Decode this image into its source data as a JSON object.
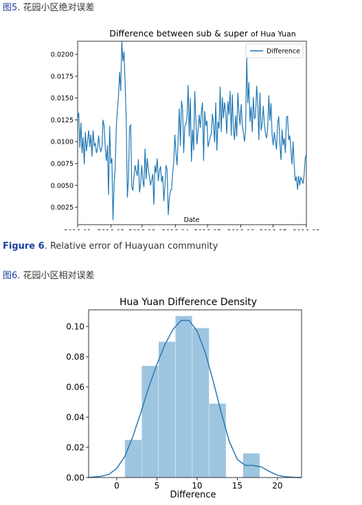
{
  "captions": {
    "fig5_cn": {
      "prefix": "图",
      "num": "5",
      "text": ". 花园小区绝对误差"
    },
    "fig6_en": {
      "label": "Figure 6",
      "text": ". Relative error of Huayuan community"
    },
    "fig6_cn": {
      "prefix": "图",
      "num": "6",
      "text": ". 花园小区相对误差"
    }
  },
  "chart_data": [
    {
      "type": "line",
      "title": "Difference between sub & super",
      "title_suffix": "of Hua Yuan",
      "xlabel": "Date",
      "ylabel": "",
      "x_ticks": [
        "2016-01",
        "2016-02",
        "2016-03",
        "2016-04",
        "2016-05",
        "2016-06",
        "2016-07",
        "2016-08"
      ],
      "y_ticks": [
        "0.0025",
        "0.0050",
        "0.0075",
        "0.0100",
        "0.0125",
        "0.0150",
        "0.0175",
        "0.0200"
      ],
      "ylim": [
        0.0005,
        0.0215
      ],
      "xlim": [
        "2016-01-01",
        "2016-08-01"
      ],
      "legend": {
        "position": "top-right",
        "entries": [
          "Difference"
        ]
      },
      "color": "#1f77b4",
      "series": [
        {
          "name": "Difference",
          "values": [
            0.0126,
            0.0133,
            0.0093,
            0.0122,
            0.0087,
            0.0105,
            0.0074,
            0.0111,
            0.0089,
            0.0101,
            0.0113,
            0.0094,
            0.0108,
            0.0083,
            0.0113,
            0.0095,
            0.0098,
            0.0087,
            0.0092,
            0.0107,
            0.0094,
            0.0089,
            0.0093,
            0.0125,
            0.0118,
            0.0093,
            0.0078,
            0.0096,
            0.0039,
            0.0118,
            0.0075,
            0.0081,
            0.001,
            0.0052,
            0.007,
            0.0117,
            0.0137,
            0.0152,
            0.018,
            0.0158,
            0.0215,
            0.0192,
            0.0203,
            0.0166,
            0.0125,
            0.0036,
            0.0058,
            0.0117,
            0.0119,
            0.0048,
            0.0044,
            0.006,
            0.0073,
            0.0066,
            0.0061,
            0.008,
            0.0042,
            0.0052,
            0.0073,
            0.0056,
            0.0048,
            0.0092,
            0.0057,
            0.0081,
            0.0068,
            0.006,
            0.005,
            0.0056,
            0.0063,
            0.0028,
            0.0073,
            0.0064,
            0.0081,
            0.0055,
            0.0066,
            0.0072,
            0.0054,
            0.0061,
            0.0032,
            0.0049,
            0.0073,
            0.0068,
            0.0016,
            0.0035,
            0.0044,
            0.0045,
            0.0064,
            0.0077,
            0.0108,
            0.0087,
            0.0073,
            0.0104,
            0.0138,
            0.0095,
            0.0147,
            0.0137,
            0.0087,
            0.0118,
            0.012,
            0.0128,
            0.0165,
            0.0106,
            0.015,
            0.0077,
            0.0114,
            0.009,
            0.0158,
            0.0126,
            0.0097,
            0.0113,
            0.0131,
            0.0116,
            0.0134,
            0.0145,
            0.0078,
            0.0135,
            0.0118,
            0.0124,
            0.0094,
            0.0099,
            0.0106,
            0.0109,
            0.0132,
            0.012,
            0.0099,
            0.0145,
            0.009,
            0.0123,
            0.0115,
            0.0163,
            0.0111,
            0.0151,
            0.0127,
            0.0145,
            0.0133,
            0.0109,
            0.0146,
            0.0131,
            0.0158,
            0.0107,
            0.0154,
            0.0115,
            0.0102,
            0.013,
            0.0106,
            0.0156,
            0.0133,
            0.0119,
            0.0143,
            0.012,
            0.011,
            0.01,
            0.0113,
            0.0197,
            0.0144,
            0.0168,
            0.0123,
            0.014,
            0.0111,
            0.0151,
            0.0126,
            0.0129,
            0.0164,
            0.0144,
            0.0102,
            0.0156,
            0.0113,
            0.012,
            0.0141,
            0.0121,
            0.0109,
            0.0104,
            0.0116,
            0.0153,
            0.0124,
            0.0144,
            0.0108,
            0.0096,
            0.0111,
            0.0101,
            0.0091,
            0.0121,
            0.0129,
            0.0099,
            0.0079,
            0.0114,
            0.0096,
            0.0104,
            0.0087,
            0.0128,
            0.0129,
            0.0102,
            0.0107,
            0.0091,
            0.0074,
            0.01,
            0.0073,
            0.0055,
            0.006,
            0.0045,
            0.0061,
            0.005,
            0.0059,
            0.0056,
            0.0052,
            0.0062,
            0.0082,
            0.0085
          ]
        }
      ]
    },
    {
      "type": "bar",
      "subtype": "histogram with density curve",
      "title": "Hua Yuan Difference Density",
      "xlabel": "Difference",
      "ylabel": "",
      "x_ticks": [
        "0",
        "5",
        "10",
        "15",
        "20"
      ],
      "y_ticks": [
        "0.00",
        "0.02",
        "0.04",
        "0.06",
        "0.08",
        "0.10"
      ],
      "xlim": [
        -3.5,
        23
      ],
      "ylim": [
        0,
        0.111
      ],
      "color": "#9ec5e0",
      "line_color": "#2a78b3",
      "bins": [
        {
          "x0": 1,
          "x1": 3.1,
          "value": 0.025
        },
        {
          "x0": 3.1,
          "x1": 5.2,
          "value": 0.074
        },
        {
          "x0": 5.2,
          "x1": 7.3,
          "value": 0.09
        },
        {
          "x0": 7.3,
          "x1": 9.4,
          "value": 0.107
        },
        {
          "x0": 9.4,
          "x1": 11.5,
          "value": 0.099
        },
        {
          "x0": 11.5,
          "x1": 13.6,
          "value": 0.049
        },
        {
          "x0": 13.6,
          "x1": 15.7,
          "value": 0.0
        },
        {
          "x0": 15.7,
          "x1": 17.8,
          "value": 0.016
        }
      ],
      "kde": {
        "x": [
          -3.5,
          -2,
          -1,
          0,
          1,
          2,
          3,
          4,
          5,
          6,
          7,
          8,
          9,
          10,
          11,
          12,
          13,
          14,
          15,
          16,
          17,
          18,
          19,
          20,
          21,
          22,
          23
        ],
        "y": [
          0.0,
          0.0008,
          0.002,
          0.006,
          0.014,
          0.027,
          0.043,
          0.06,
          0.075,
          0.088,
          0.098,
          0.104,
          0.104,
          0.097,
          0.083,
          0.064,
          0.043,
          0.024,
          0.012,
          0.008,
          0.008,
          0.007,
          0.004,
          0.0015,
          0.0005,
          0.0001,
          0.0
        ]
      }
    }
  ]
}
